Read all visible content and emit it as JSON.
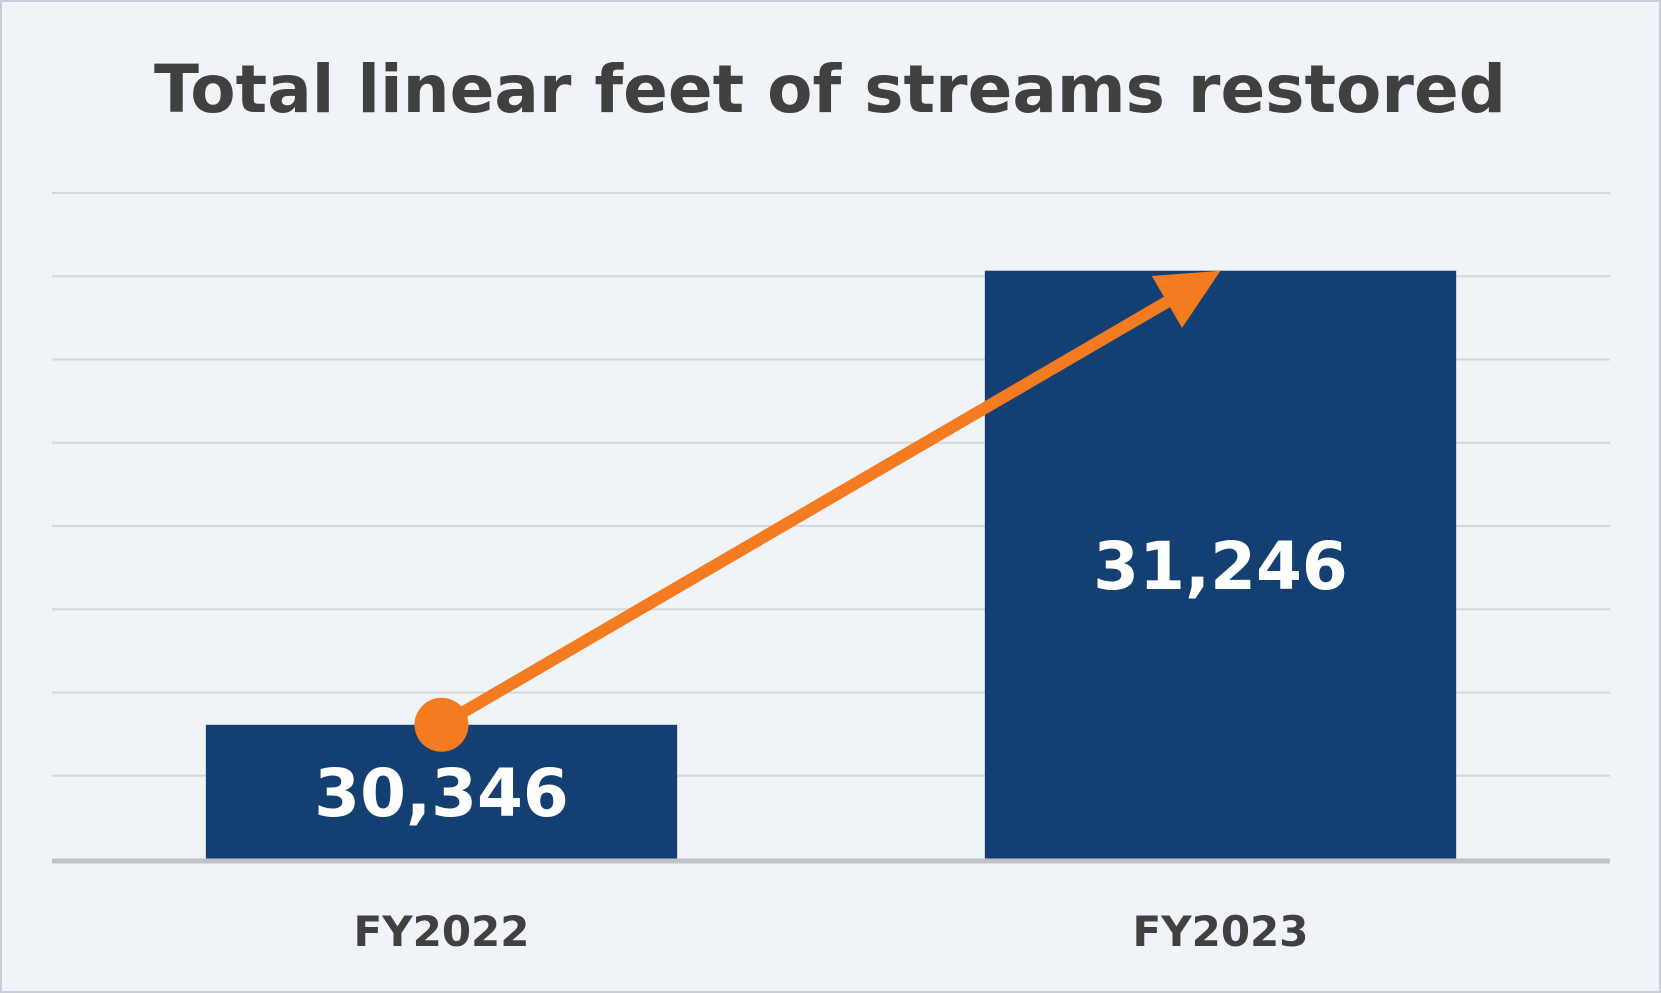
{
  "chart_data": {
    "type": "bar",
    "title": "Total linear feet of streams restored",
    "categories": [
      "FY2022",
      "FY2023"
    ],
    "values": [
      30346,
      31246
    ],
    "value_labels": [
      "30,346",
      "31,246"
    ],
    "xlabel": "",
    "ylabel": "",
    "ylim": [
      30080,
      31400
    ],
    "gridline_step": 165,
    "grid": true,
    "annotation": {
      "type": "trend-arrow",
      "from": "FY2022",
      "to": "FY2023",
      "direction": "increase"
    }
  },
  "colors": {
    "bar": "#143f73",
    "arrow": "#f47b20",
    "gridline": "#d4d7db",
    "axis": "#bfc3c8",
    "background": "#f0f3f8",
    "text": "#404040"
  }
}
